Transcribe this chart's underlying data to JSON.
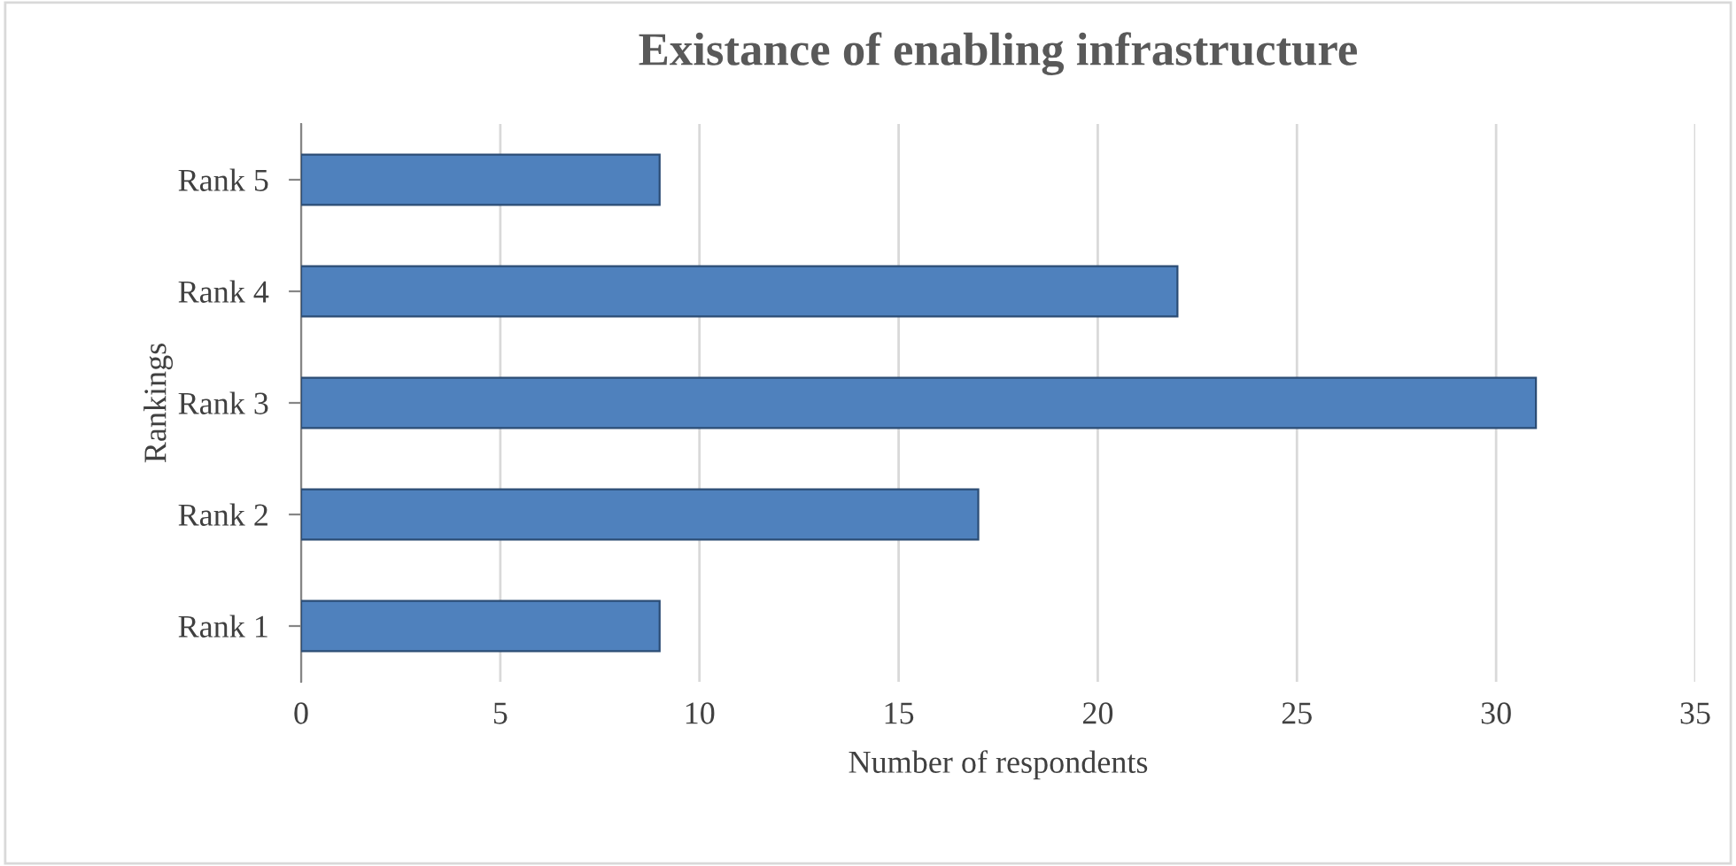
{
  "chart_data": {
    "type": "bar",
    "orientation": "horizontal",
    "title": "Existance of enabling infrastructure",
    "xlabel": "Number of respondents",
    "ylabel": "Rankings",
    "categories": [
      "Rank 5",
      "Rank 4",
      "Rank 3",
      "Rank 2",
      "Rank 1"
    ],
    "values": [
      9,
      22,
      31,
      17,
      9
    ],
    "color": "#4f81bd",
    "xlim": [
      0,
      35
    ],
    "xticks": [
      0,
      5,
      10,
      15,
      20,
      25,
      30,
      35
    ],
    "grid": "x",
    "legend": false
  }
}
